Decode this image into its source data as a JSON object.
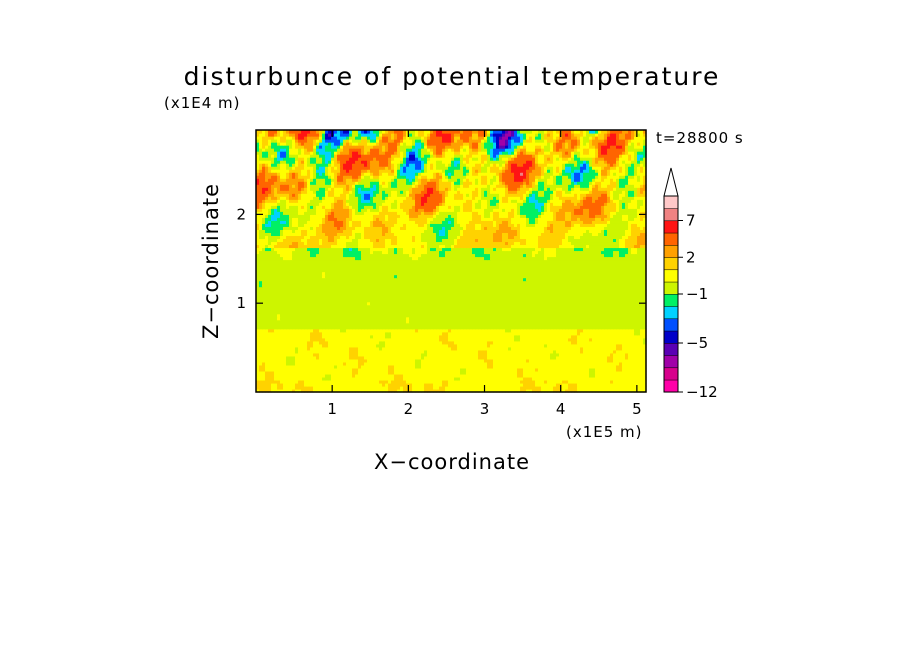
{
  "chart_data": {
    "type": "heatmap",
    "title": "disturbunce of potential temperature",
    "time_label": "t=28800 s",
    "xlabel": "X−coordinate",
    "ylabel": "Z−coordinate",
    "x_unit": "(x1E5 m)",
    "y_unit": "(x1E4 m)",
    "xlim": [
      0,
      5.12
    ],
    "ylim": [
      0,
      2.95
    ],
    "x_ticks": [
      1,
      2,
      3,
      4,
      5
    ],
    "x_tick_labels": [
      "1",
      "2",
      "3",
      "4",
      "5"
    ],
    "y_ticks": [
      1,
      2
    ],
    "y_tick_labels": [
      "1",
      "2"
    ],
    "field_description_levels": {
      "bottom_layer_0_to_0.75": "mostly 0 to 1 (yellow) with scattered 1 to 2 (orange-yellow)",
      "middle_layer_0.75_to_1.6": "mostly -1 to 0 (green)",
      "top_layer_1.6_to_2.95": "wave pattern with values from -5 to 7"
    },
    "colorbar": {
      "label_values": [
        7,
        2,
        -1,
        -5,
        -12
      ],
      "label_texts": [
        "7",
        "2",
        "−1",
        "−5",
        "−12"
      ],
      "levels_bottom_to_top": [
        -12,
        -10,
        -8,
        -6,
        -5,
        -4,
        -3,
        -2,
        -1,
        0,
        1,
        2,
        3,
        5,
        7,
        10,
        15
      ],
      "colors_bottom_to_top": [
        "#ff00a8",
        "#d8008c",
        "#a000a8",
        "#5a00b4",
        "#0000c8",
        "#0050ff",
        "#00d2ff",
        "#00f064",
        "#cdf500",
        "#ffff00",
        "#ffd200",
        "#ffa000",
        "#ff6400",
        "#ff1414",
        "#f08282",
        "#ffc8c8"
      ],
      "extend": "max"
    }
  }
}
